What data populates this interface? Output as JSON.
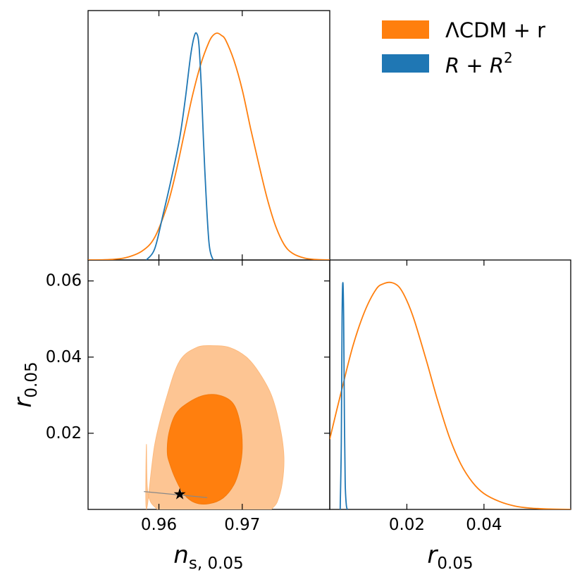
{
  "chart_data": [
    {
      "panel": "ns_marginal",
      "type": "line",
      "xlim": [
        0.9515,
        0.9805
      ],
      "series": [
        {
          "name": "ΛCDM + r",
          "color": "#ff7f0e",
          "x": [
            0.9515,
            0.954,
            0.956,
            0.958,
            0.9595,
            0.961,
            0.962,
            0.963,
            0.964,
            0.965,
            0.966,
            0.9665,
            0.967,
            0.9675,
            0.968,
            0.969,
            0.97,
            0.971,
            0.972,
            0.973,
            0.974,
            0.975,
            0.976,
            0.9775,
            0.979,
            0.9805
          ],
          "y": [
            0,
            0.002,
            0.01,
            0.04,
            0.1,
            0.24,
            0.38,
            0.55,
            0.72,
            0.86,
            0.96,
            0.99,
            1.0,
            0.99,
            0.97,
            0.88,
            0.75,
            0.58,
            0.42,
            0.27,
            0.15,
            0.07,
            0.03,
            0.008,
            0.002,
            0
          ]
        },
        {
          "name": "R + R^2",
          "color": "#1f77b4",
          "x": [
            0.9585,
            0.9595,
            0.9605,
            0.9615,
            0.9625,
            0.9632,
            0.9638,
            0.9642,
            0.9645,
            0.9648,
            0.9651,
            0.9655,
            0.966,
            0.9665
          ],
          "y": [
            0,
            0.05,
            0.2,
            0.36,
            0.54,
            0.72,
            0.9,
            0.98,
            1.0,
            0.95,
            0.75,
            0.4,
            0.08,
            0
          ]
        }
      ]
    },
    {
      "panel": "ns_r_contours",
      "type": "contour",
      "xlim": [
        0.9515,
        0.9805
      ],
      "ylim": [
        0,
        0.0655
      ],
      "ylabel": "r_0.05",
      "yticks": [
        0.02,
        0.04,
        0.06
      ],
      "ytick_labels": [
        "0.02",
        "0.04",
        "0.06"
      ],
      "contours": [
        {
          "level": "95%",
          "color": "#fdc593",
          "x": [
            0.9585,
            0.9595,
            0.961,
            0.9625,
            0.9645,
            0.9665,
            0.9685,
            0.9705,
            0.972,
            0.9735,
            0.9745,
            0.975,
            0.9748,
            0.9742,
            0.9735
          ],
          "y": [
            0,
            0.017,
            0.03,
            0.039,
            0.0425,
            0.043,
            0.0425,
            0.04,
            0.036,
            0.03,
            0.022,
            0.014,
            0.007,
            0.002,
            0
          ],
          "x_back": [
            0.9598,
            0.959,
            0.9586,
            0.9585
          ],
          "y_back": [
            0,
            0.002,
            0.006,
            0.017
          ]
        },
        {
          "level": "68%",
          "color": "#ff7f0e",
          "x": [
            0.961,
            0.9612,
            0.962,
            0.9635,
            0.9655,
            0.9675,
            0.969,
            0.9698,
            0.97,
            0.9697,
            0.969,
            0.9677,
            0.966,
            0.9643,
            0.963,
            0.962,
            0.9613
          ],
          "y": [
            0.015,
            0.02,
            0.025,
            0.028,
            0.03,
            0.0298,
            0.0275,
            0.022,
            0.016,
            0.011,
            0.0065,
            0.003,
            0.0015,
            0.0018,
            0.004,
            0.008,
            0.012
          ]
        }
      ],
      "marker": {
        "label": "★",
        "x": 0.9625,
        "y": 0.0039
      },
      "line": {
        "x": [
          0.9582,
          0.9658
        ],
        "y": [
          0.0047,
          0.0031
        ]
      }
    },
    {
      "panel": "r_marginal",
      "type": "line",
      "xlim": [
        0,
        0.0625
      ],
      "series": [
        {
          "name": "ΛCDM + r",
          "color": "#ff7f0e",
          "x": [
            0,
            0.003,
            0.006,
            0.009,
            0.012,
            0.014,
            0.016,
            0.018,
            0.02,
            0.022,
            0.025,
            0.028,
            0.031,
            0.034,
            0.037,
            0.04,
            0.044,
            0.048,
            0.052,
            0.057,
            0.0625
          ],
          "y": [
            0.31,
            0.52,
            0.72,
            0.87,
            0.97,
            0.995,
            1.0,
            0.98,
            0.92,
            0.83,
            0.66,
            0.48,
            0.32,
            0.2,
            0.12,
            0.07,
            0.035,
            0.015,
            0.006,
            0.002,
            0
          ]
        },
        {
          "name": "R + R^2",
          "color": "#1f77b4",
          "x": [
            0.0027,
            0.003,
            0.0032,
            0.0034,
            0.0036,
            0.0038,
            0.004,
            0.0043,
            0.0046
          ],
          "y": [
            0,
            0.3,
            0.85,
            1.0,
            0.85,
            0.4,
            0.12,
            0.02,
            0
          ]
        }
      ]
    }
  ],
  "legend": [
    {
      "label": "ΛCDM + r",
      "color": "#ff7f0e"
    },
    {
      "label": "R + R",
      "sup": "2",
      "color": "#1f77b4"
    }
  ],
  "x_axis": {
    "ns_ticks": [
      0.96,
      0.97
    ],
    "ns_tick_labels": [
      "0.96",
      "0.97"
    ],
    "ns_label": "n",
    "ns_label_sub": "s, 0.05",
    "r_ticks": [
      0.02,
      0.04
    ],
    "r_tick_labels": [
      "0.02",
      "0.04"
    ],
    "r_label": "r",
    "r_label_sub": "0.05"
  }
}
